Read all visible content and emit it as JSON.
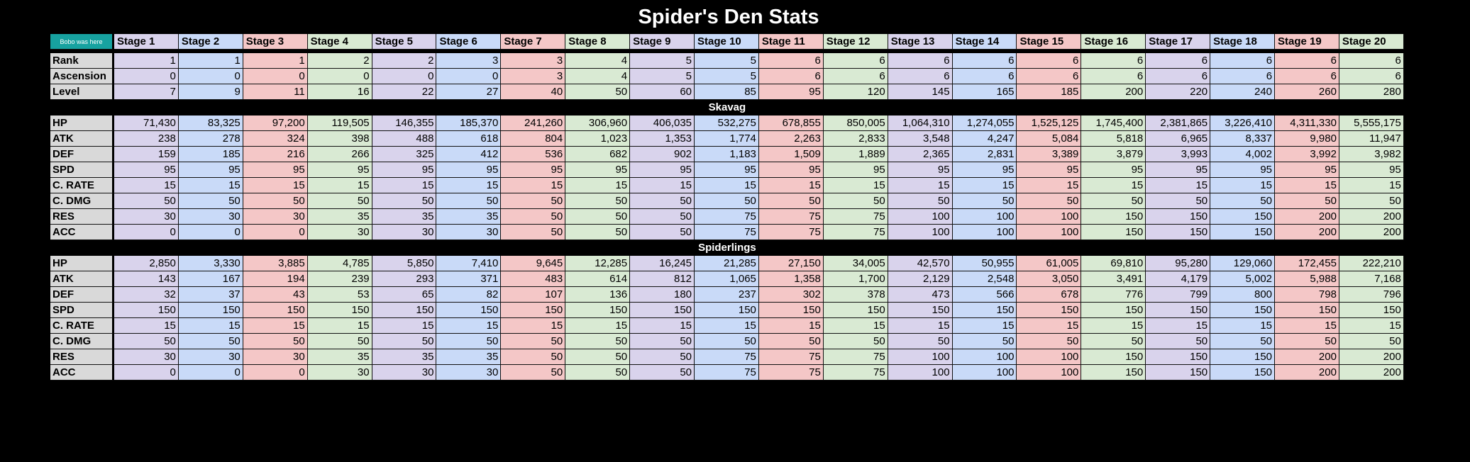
{
  "title": "Spider's Den Stats",
  "corner_label": "Bobo was here",
  "stages": [
    "Stage 1",
    "Stage 2",
    "Stage 3",
    "Stage 4",
    "Stage 5",
    "Stage 6",
    "Stage 7",
    "Stage 8",
    "Stage 9",
    "Stage 10",
    "Stage 11",
    "Stage 12",
    "Stage 13",
    "Stage 14",
    "Stage 15",
    "Stage 16",
    "Stage 17",
    "Stage 18",
    "Stage 19",
    "Stage 20"
  ],
  "stage_colors": [
    "#d9d3ec",
    "#c9daf8",
    "#f4c7c7",
    "#d9ead3"
  ],
  "general": [
    {
      "label": "Rank",
      "values": [
        "1",
        "1",
        "1",
        "2",
        "2",
        "3",
        "3",
        "4",
        "5",
        "5",
        "6",
        "6",
        "6",
        "6",
        "6",
        "6",
        "6",
        "6",
        "6",
        "6"
      ]
    },
    {
      "label": "Ascension",
      "values": [
        "0",
        "0",
        "0",
        "0",
        "0",
        "0",
        "3",
        "4",
        "5",
        "5",
        "6",
        "6",
        "6",
        "6",
        "6",
        "6",
        "6",
        "6",
        "6",
        "6"
      ]
    },
    {
      "label": "Level",
      "values": [
        "7",
        "9",
        "11",
        "16",
        "22",
        "27",
        "40",
        "50",
        "60",
        "85",
        "95",
        "120",
        "145",
        "165",
        "185",
        "200",
        "220",
        "240",
        "260",
        "280"
      ]
    }
  ],
  "sections": [
    {
      "name": "Skavag",
      "rows": [
        {
          "label": "HP",
          "values": [
            "71,430",
            "83,325",
            "97,200",
            "119,505",
            "146,355",
            "185,370",
            "241,260",
            "306,960",
            "406,035",
            "532,275",
            "678,855",
            "850,005",
            "1,064,310",
            "1,274,055",
            "1,525,125",
            "1,745,400",
            "2,381,865",
            "3,226,410",
            "4,311,330",
            "5,555,175"
          ]
        },
        {
          "label": "ATK",
          "values": [
            "238",
            "278",
            "324",
            "398",
            "488",
            "618",
            "804",
            "1,023",
            "1,353",
            "1,774",
            "2,263",
            "2,833",
            "3,548",
            "4,247",
            "5,084",
            "5,818",
            "6,965",
            "8,337",
            "9,980",
            "11,947"
          ]
        },
        {
          "label": "DEF",
          "values": [
            "159",
            "185",
            "216",
            "266",
            "325",
            "412",
            "536",
            "682",
            "902",
            "1,183",
            "1,509",
            "1,889",
            "2,365",
            "2,831",
            "3,389",
            "3,879",
            "3,993",
            "4,002",
            "3,992",
            "3,982"
          ]
        },
        {
          "label": "SPD",
          "values": [
            "95",
            "95",
            "95",
            "95",
            "95",
            "95",
            "95",
            "95",
            "95",
            "95",
            "95",
            "95",
            "95",
            "95",
            "95",
            "95",
            "95",
            "95",
            "95",
            "95"
          ]
        },
        {
          "label": "C. RATE",
          "values": [
            "15",
            "15",
            "15",
            "15",
            "15",
            "15",
            "15",
            "15",
            "15",
            "15",
            "15",
            "15",
            "15",
            "15",
            "15",
            "15",
            "15",
            "15",
            "15",
            "15"
          ]
        },
        {
          "label": "C. DMG",
          "values": [
            "50",
            "50",
            "50",
            "50",
            "50",
            "50",
            "50",
            "50",
            "50",
            "50",
            "50",
            "50",
            "50",
            "50",
            "50",
            "50",
            "50",
            "50",
            "50",
            "50"
          ]
        },
        {
          "label": "RES",
          "values": [
            "30",
            "30",
            "30",
            "35",
            "35",
            "35",
            "50",
            "50",
            "50",
            "75",
            "75",
            "75",
            "100",
            "100",
            "100",
            "150",
            "150",
            "150",
            "200",
            "200"
          ]
        },
        {
          "label": "ACC",
          "values": [
            "0",
            "0",
            "0",
            "30",
            "30",
            "30",
            "50",
            "50",
            "50",
            "75",
            "75",
            "75",
            "100",
            "100",
            "100",
            "150",
            "150",
            "150",
            "200",
            "200"
          ]
        }
      ]
    },
    {
      "name": "Spiderlings",
      "rows": [
        {
          "label": "HP",
          "values": [
            "2,850",
            "3,330",
            "3,885",
            "4,785",
            "5,850",
            "7,410",
            "9,645",
            "12,285",
            "16,245",
            "21,285",
            "27,150",
            "34,005",
            "42,570",
            "50,955",
            "61,005",
            "69,810",
            "95,280",
            "129,060",
            "172,455",
            "222,210"
          ]
        },
        {
          "label": "ATK",
          "values": [
            "143",
            "167",
            "194",
            "239",
            "293",
            "371",
            "483",
            "614",
            "812",
            "1,065",
            "1,358",
            "1,700",
            "2,129",
            "2,548",
            "3,050",
            "3,491",
            "4,179",
            "5,002",
            "5,988",
            "7,168"
          ]
        },
        {
          "label": "DEF",
          "values": [
            "32",
            "37",
            "43",
            "53",
            "65",
            "82",
            "107",
            "136",
            "180",
            "237",
            "302",
            "378",
            "473",
            "566",
            "678",
            "776",
            "799",
            "800",
            "798",
            "796"
          ]
        },
        {
          "label": "SPD",
          "values": [
            "150",
            "150",
            "150",
            "150",
            "150",
            "150",
            "150",
            "150",
            "150",
            "150",
            "150",
            "150",
            "150",
            "150",
            "150",
            "150",
            "150",
            "150",
            "150",
            "150"
          ]
        },
        {
          "label": "C. RATE",
          "values": [
            "15",
            "15",
            "15",
            "15",
            "15",
            "15",
            "15",
            "15",
            "15",
            "15",
            "15",
            "15",
            "15",
            "15",
            "15",
            "15",
            "15",
            "15",
            "15",
            "15"
          ]
        },
        {
          "label": "C. DMG",
          "values": [
            "50",
            "50",
            "50",
            "50",
            "50",
            "50",
            "50",
            "50",
            "50",
            "50",
            "50",
            "50",
            "50",
            "50",
            "50",
            "50",
            "50",
            "50",
            "50",
            "50"
          ]
        },
        {
          "label": "RES",
          "values": [
            "30",
            "30",
            "30",
            "35",
            "35",
            "35",
            "50",
            "50",
            "50",
            "75",
            "75",
            "75",
            "100",
            "100",
            "100",
            "150",
            "150",
            "150",
            "200",
            "200"
          ]
        },
        {
          "label": "ACC",
          "values": [
            "0",
            "0",
            "0",
            "30",
            "30",
            "30",
            "50",
            "50",
            "50",
            "75",
            "75",
            "75",
            "100",
            "100",
            "100",
            "150",
            "150",
            "150",
            "200",
            "200"
          ]
        }
      ]
    }
  ]
}
